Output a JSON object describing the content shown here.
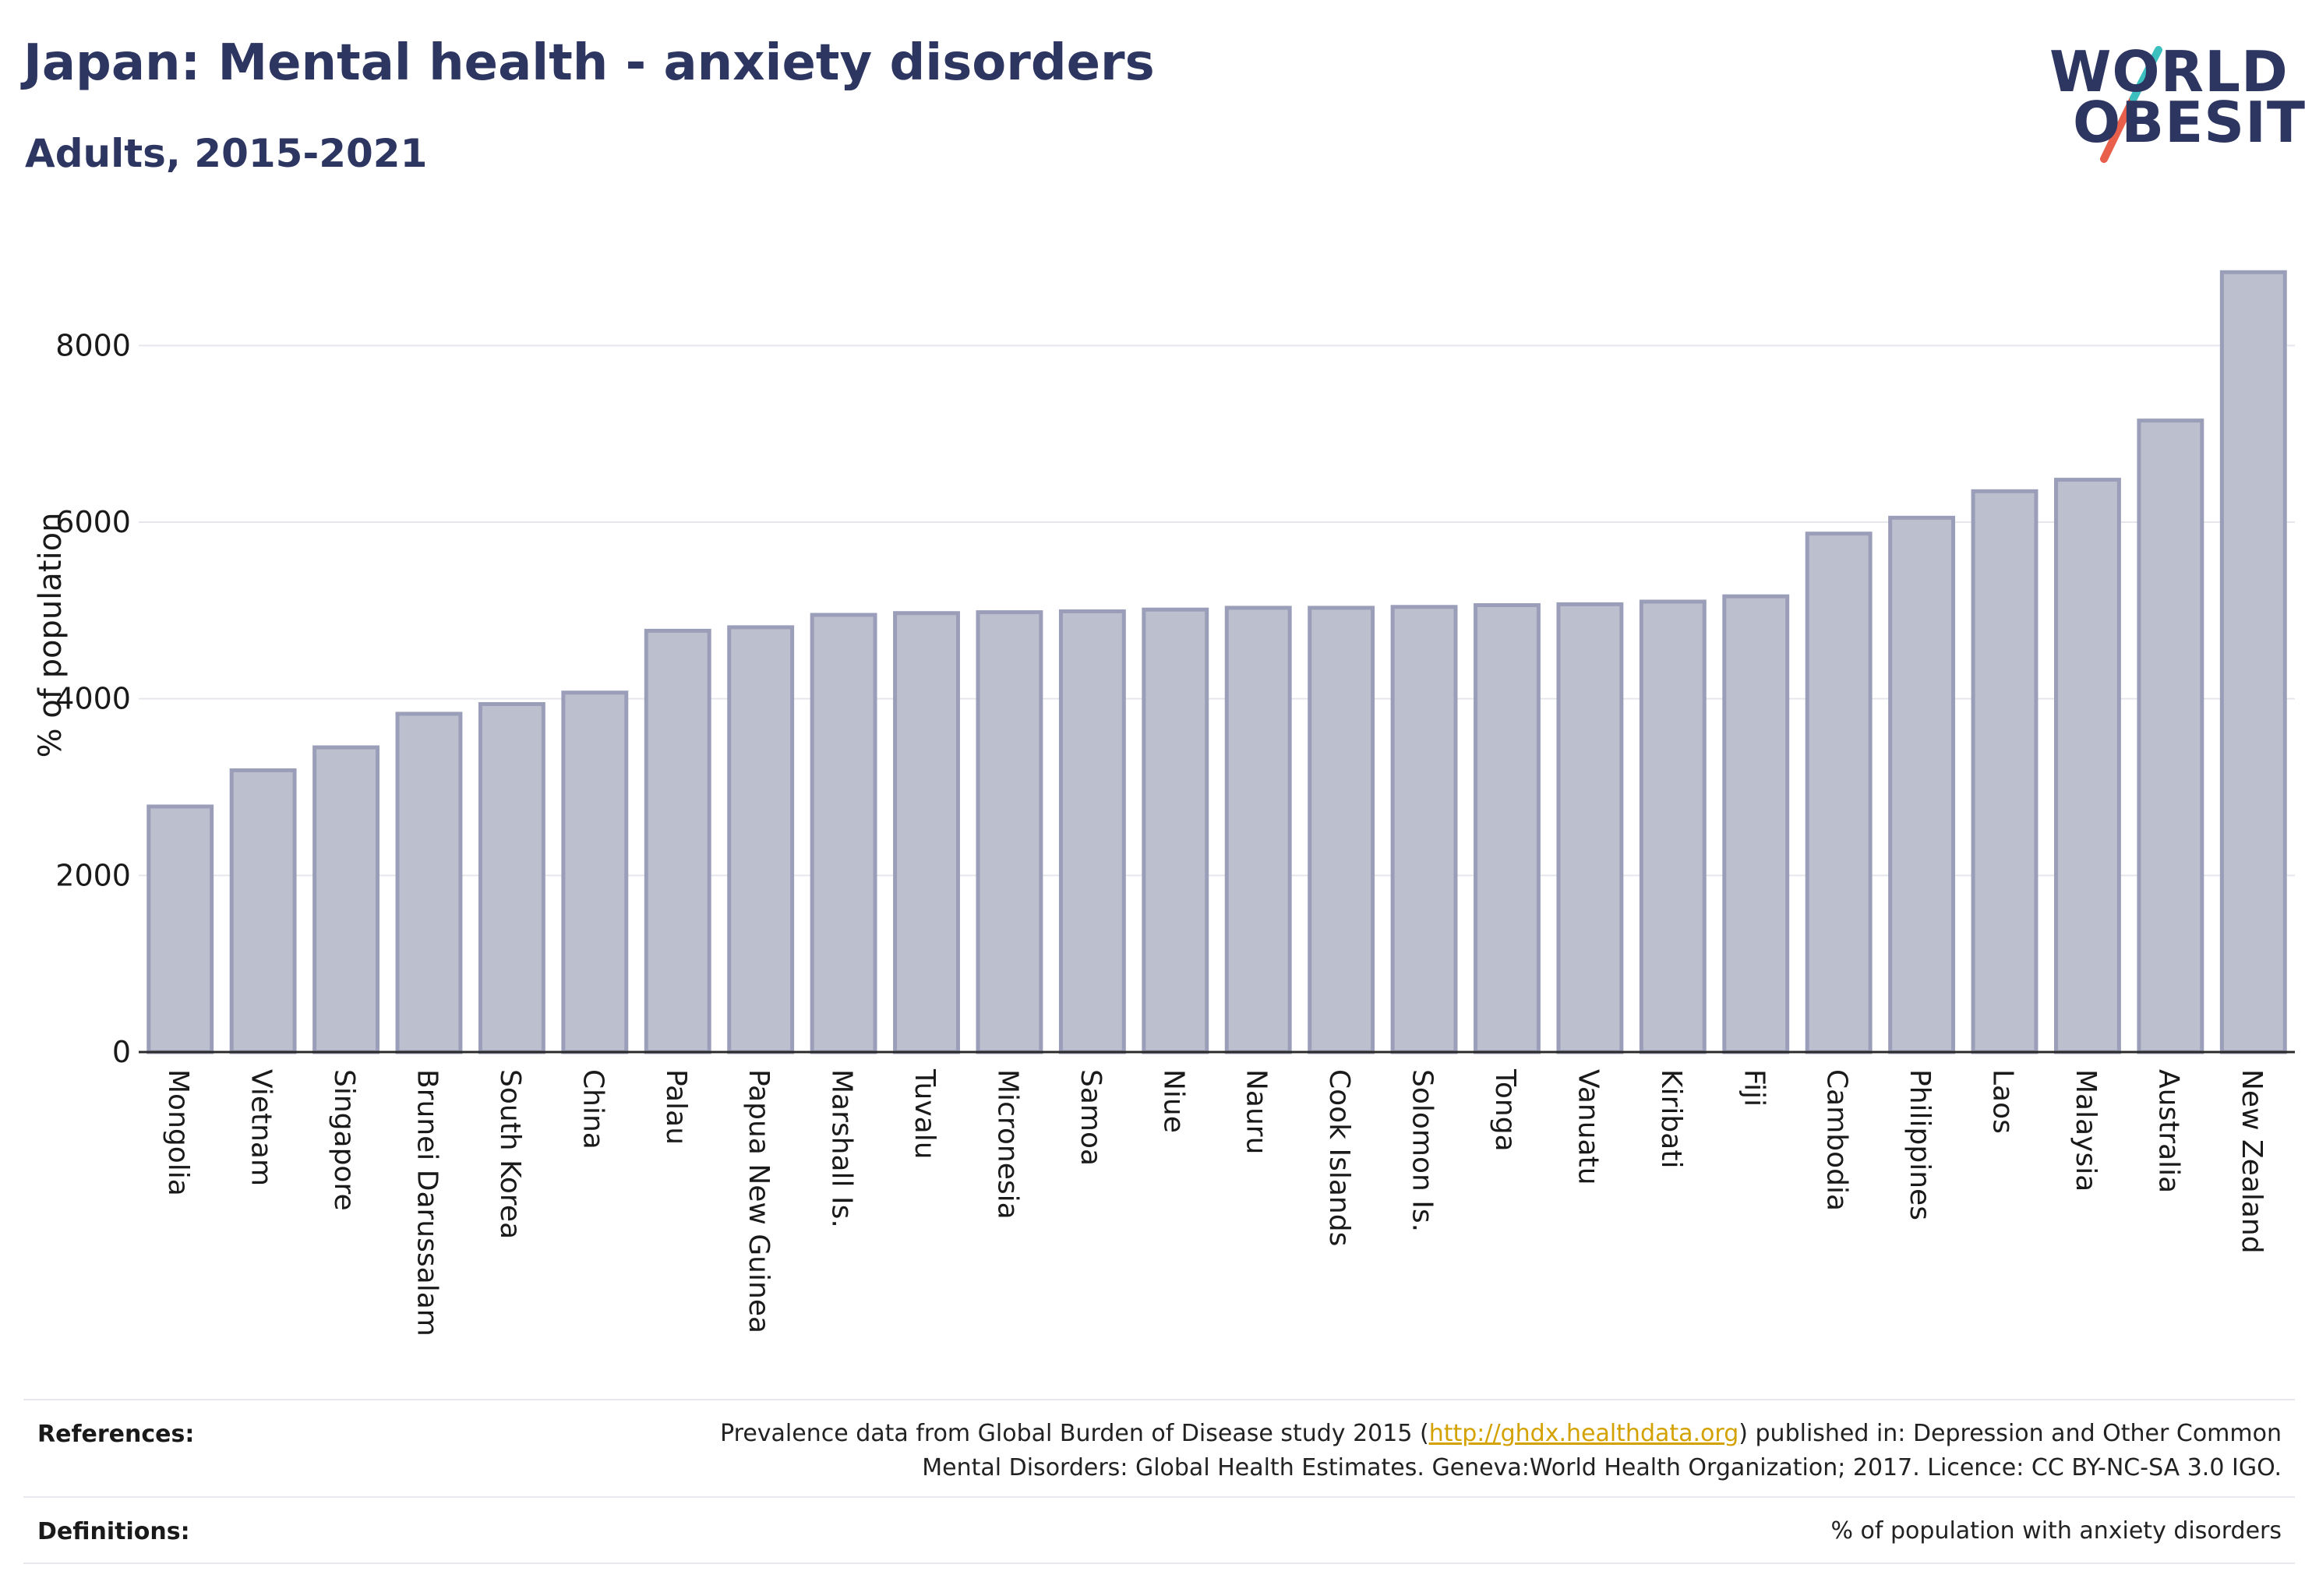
{
  "title": "Japan: Mental health - anxiety disorders",
  "subtitle": "Adults, 2015-2021",
  "logo": {
    "line1": "WORLD",
    "line2": "OBESITY",
    "accent_teal": "#3cbfbf",
    "accent_red": "#e8604c"
  },
  "colors": {
    "bar_fill": "#bcbfcd",
    "bar_stroke": "#9a9eb8",
    "text": "#2d3561",
    "grid": "#e6e7ec"
  },
  "chart_data": {
    "type": "bar",
    "ylabel": "% of population",
    "ylim": [
      0,
      9000
    ],
    "yticks": [
      0,
      2000,
      4000,
      6000,
      8000
    ],
    "grid": true,
    "categories": [
      "Mongolia",
      "Vietnam",
      "Singapore",
      "Brunei Darussalam",
      "South Korea",
      "China",
      "Palau",
      "Papua New Guinea",
      "Marshall Is.",
      "Tuvalu",
      "Micronesia",
      "Samoa",
      "Niue",
      "Nauru",
      "Cook Islands",
      "Solomon Is.",
      "Tonga",
      "Vanuatu",
      "Kiribati",
      "Fiji",
      "Cambodia",
      "Philippines",
      "Laos",
      "Malaysia",
      "Australia",
      "New Zealand"
    ],
    "values": [
      2780,
      3190,
      3450,
      3830,
      3940,
      4070,
      4770,
      4810,
      4950,
      4970,
      4980,
      4990,
      5010,
      5030,
      5030,
      5040,
      5060,
      5070,
      5100,
      5160,
      5870,
      6050,
      6350,
      6480,
      7150,
      8830
    ]
  },
  "references": {
    "label": "References:",
    "text_before": "Prevalence data from Global Burden of Disease study 2015 (",
    "link": "http://ghdx.healthdata.org",
    "text_after": ") published in: Depression and Other Common",
    "line2": "Mental Disorders: Global Health Estimates. Geneva:World Health Organization; 2017. Licence: CC BY-NC-SA 3.0 IGO."
  },
  "definitions": {
    "label": "Definitions:",
    "text": "% of population with anxiety disorders"
  }
}
